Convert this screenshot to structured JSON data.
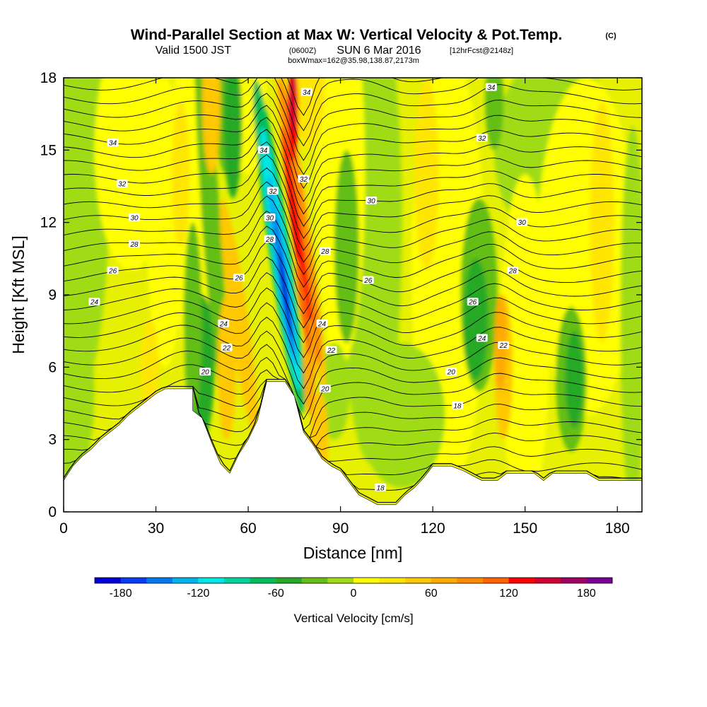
{
  "title": {
    "main": "Wind-Parallel Section at Max W: Vertical Velocity & Pot.Temp.",
    "copyright": "(C)",
    "valid_prefix": "Valid 1500 JST",
    "valid_utc": "(0600Z)",
    "valid_date": "SUN 6 Mar 2016",
    "forecast": "[12hrFcst@2148z]",
    "box": "boxWmax=162@35.98,138.87,2173m"
  },
  "chart_data": {
    "type": "heatmap",
    "xlabel": "Distance [nm]",
    "ylabel": "Height [Kft MSL]",
    "xlim": [
      0,
      188
    ],
    "ylim": [
      0,
      18
    ],
    "xticks": [
      "0",
      "30",
      "60",
      "90",
      "120",
      "150",
      "180"
    ],
    "yticks": [
      "0",
      "3",
      "6",
      "9",
      "12",
      "15",
      "18"
    ],
    "colorbar": {
      "label": "Vertical Velocity [cm/s]",
      "ticks": [
        "-180",
        "-120",
        "-60",
        "0",
        "60",
        "120",
        "180"
      ],
      "colors": [
        "#0000d8",
        "#0a3cf0",
        "#0078f0",
        "#00b4f0",
        "#00e6e6",
        "#00d2a0",
        "#00be5a",
        "#28aa28",
        "#64be14",
        "#a0dc14",
        "#ffff00",
        "#ffe600",
        "#ffc800",
        "#ffaa00",
        "#ff8c00",
        "#ff6400",
        "#ff0000",
        "#d20032",
        "#a00064",
        "#780096"
      ]
    },
    "series": [
      {
        "name": "Vertical Velocity [cm/s]",
        "kind": "filled contours",
        "notable": {
          "max_updraft": 162,
          "strong_updraft_x": 76,
          "strong_downdraft_x": 71
        }
      },
      {
        "kind": "potential temperature contours",
        "values": [
          18,
          20,
          22,
          24,
          26,
          28,
          30,
          32,
          34
        ]
      }
    ],
    "terrain_profile": [
      [
        0,
        1.3
      ],
      [
        3,
        1.9
      ],
      [
        6,
        2.3
      ],
      [
        9,
        2.6
      ],
      [
        12,
        3.0
      ],
      [
        15,
        3.3
      ],
      [
        18,
        3.6
      ],
      [
        21,
        4.0
      ],
      [
        24,
        4.3
      ],
      [
        27,
        4.6
      ],
      [
        30,
        4.9
      ],
      [
        33,
        5.1
      ],
      [
        42,
        5.1
      ],
      [
        42,
        4.2
      ],
      [
        45,
        3.9
      ],
      [
        48,
        2.9
      ],
      [
        51,
        2.0
      ],
      [
        54,
        1.6
      ],
      [
        57,
        2.4
      ],
      [
        60,
        3.0
      ],
      [
        63,
        3.8
      ],
      [
        66,
        5.4
      ],
      [
        72,
        5.4
      ],
      [
        75,
        4.8
      ],
      [
        78,
        3.3
      ],
      [
        81,
        2.8
      ],
      [
        84,
        2.2
      ],
      [
        87,
        1.9
      ],
      [
        90,
        1.7
      ],
      [
        93,
        1.2
      ],
      [
        96,
        0.7
      ],
      [
        99,
        0.5
      ],
      [
        102,
        0.3
      ],
      [
        108,
        0.3
      ],
      [
        111,
        0.7
      ],
      [
        114,
        1.0
      ],
      [
        117,
        1.4
      ],
      [
        120,
        1.9
      ],
      [
        126,
        1.9
      ],
      [
        130,
        1.7
      ],
      [
        133,
        1.5
      ],
      [
        136,
        1.3
      ],
      [
        141,
        1.3
      ],
      [
        144,
        1.6
      ],
      [
        153,
        1.6
      ],
      [
        156,
        1.3
      ],
      [
        159,
        1.6
      ],
      [
        170,
        1.6
      ],
      [
        174,
        1.3
      ],
      [
        188,
        1.3
      ]
    ],
    "contour_labels": [
      {
        "v": "34",
        "x": 16,
        "y": 15.3
      },
      {
        "v": "32",
        "x": 19,
        "y": 13.6
      },
      {
        "v": "30",
        "x": 23,
        "y": 12.2
      },
      {
        "v": "28",
        "x": 23,
        "y": 11.1
      },
      {
        "v": "26",
        "x": 16,
        "y": 10.0
      },
      {
        "v": "24",
        "x": 10,
        "y": 8.7
      },
      {
        "v": "34",
        "x": 65,
        "y": 15.0
      },
      {
        "v": "32",
        "x": 68,
        "y": 13.3
      },
      {
        "v": "30",
        "x": 67,
        "y": 12.2
      },
      {
        "v": "28",
        "x": 67,
        "y": 11.3
      },
      {
        "v": "26",
        "x": 57,
        "y": 9.7
      },
      {
        "v": "24",
        "x": 52,
        "y": 7.8
      },
      {
        "v": "22",
        "x": 53,
        "y": 6.8
      },
      {
        "v": "20",
        "x": 46,
        "y": 5.8
      },
      {
        "v": "34",
        "x": 79,
        "y": 17.4
      },
      {
        "v": "32",
        "x": 78,
        "y": 13.8
      },
      {
        "v": "28",
        "x": 85,
        "y": 10.8
      },
      {
        "v": "24",
        "x": 84,
        "y": 7.8
      },
      {
        "v": "22",
        "x": 87,
        "y": 6.7
      },
      {
        "v": "20",
        "x": 85,
        "y": 5.1
      },
      {
        "v": "30",
        "x": 100,
        "y": 12.9
      },
      {
        "v": "26",
        "x": 99,
        "y": 9.6
      },
      {
        "v": "18",
        "x": 103,
        "y": 1.0
      },
      {
        "v": "34",
        "x": 139,
        "y": 17.6
      },
      {
        "v": "32",
        "x": 136,
        "y": 15.5
      },
      {
        "v": "30",
        "x": 149,
        "y": 12.0
      },
      {
        "v": "28",
        "x": 146,
        "y": 10.0
      },
      {
        "v": "26",
        "x": 133,
        "y": 8.7
      },
      {
        "v": "24",
        "x": 136,
        "y": 7.2
      },
      {
        "v": "22",
        "x": 143,
        "y": 6.9
      },
      {
        "v": "20",
        "x": 126,
        "y": 5.8
      },
      {
        "v": "18",
        "x": 128,
        "y": 4.4
      }
    ]
  }
}
